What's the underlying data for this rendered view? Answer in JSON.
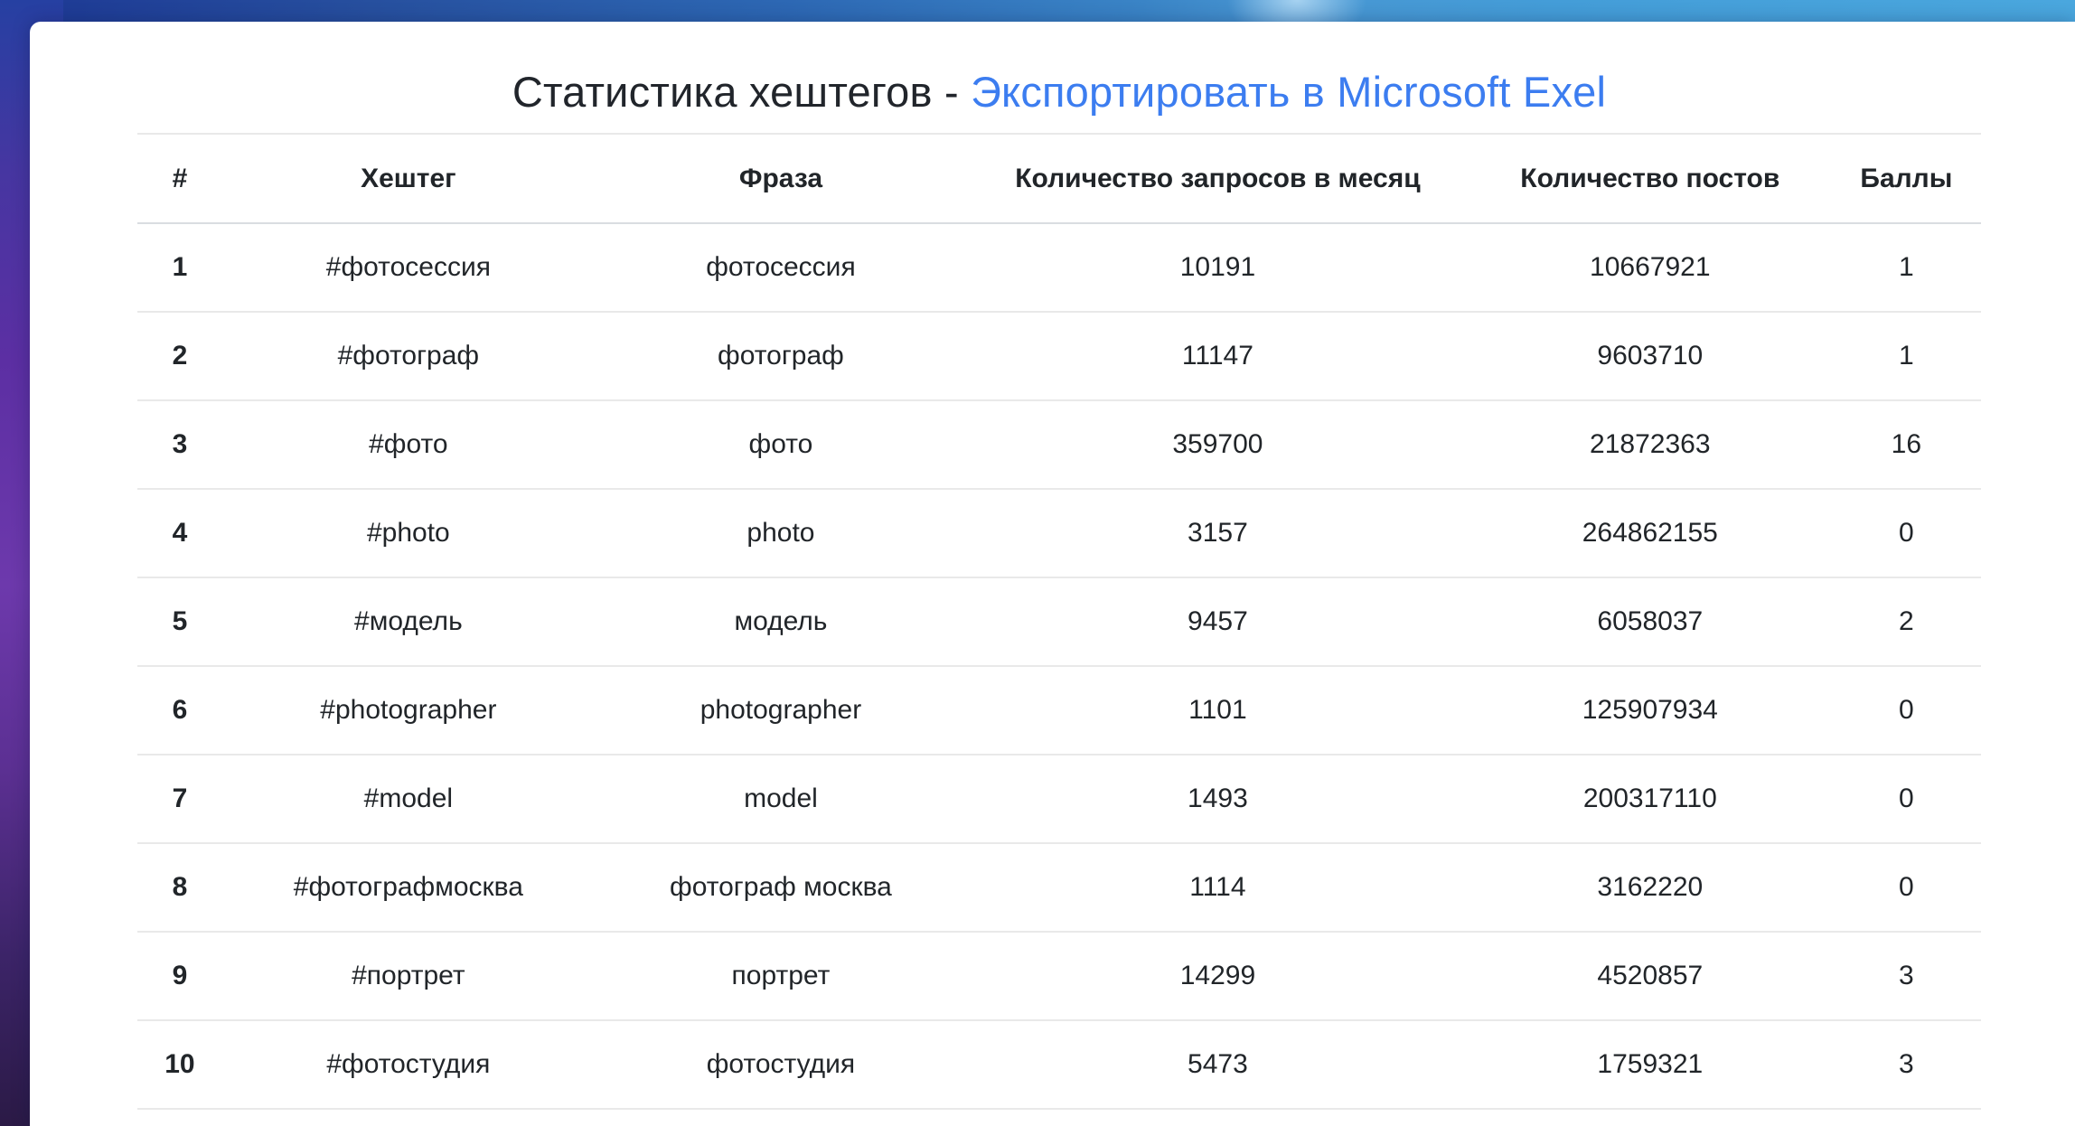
{
  "header": {
    "title_text": "Статистика хештегов - ",
    "export_link_label": "Экспортировать в Microsoft Exel"
  },
  "table": {
    "columns": [
      {
        "key": "index",
        "label": "#"
      },
      {
        "key": "hashtag",
        "label": "Хештег"
      },
      {
        "key": "phrase",
        "label": "Фраза"
      },
      {
        "key": "requests_per_month",
        "label": "Количество запросов в месяц"
      },
      {
        "key": "posts_count",
        "label": "Количество постов"
      },
      {
        "key": "score",
        "label": "Баллы"
      }
    ],
    "rows": [
      [
        "1",
        "#фотосессия",
        "фотосессия",
        "10191",
        "10667921",
        "1"
      ],
      [
        "2",
        "#фотограф",
        "фотограф",
        "11147",
        "9603710",
        "1"
      ],
      [
        "3",
        "#фото",
        "фото",
        "359700",
        "21872363",
        "16"
      ],
      [
        "4",
        "#photo",
        "photo",
        "3157",
        "264862155",
        "0"
      ],
      [
        "5",
        "#модель",
        "модель",
        "9457",
        "6058037",
        "2"
      ],
      [
        "6",
        "#photographer",
        "photographer",
        "1101",
        "125907934",
        "0"
      ],
      [
        "7",
        "#model",
        "model",
        "1493",
        "200317110",
        "0"
      ],
      [
        "8",
        "#фотографмосква",
        "фотограф москва",
        "1114",
        "3162220",
        "0"
      ],
      [
        "9",
        "#портрет",
        "портрет",
        "14299",
        "4520857",
        "3"
      ],
      [
        "10",
        "#фотостудия",
        "фотостудия",
        "5473",
        "1759321",
        "3"
      ]
    ]
  },
  "colors": {
    "link_blue": "#3c7df0",
    "text_dark": "#21252b",
    "divider_gray": "#e9e9e9",
    "bg_top_left_blue": "#1d3894",
    "bg_top_right_blue": "#4aa7de",
    "bg_left_purple": "#6d39ac",
    "bg_left_bottom_purple": "#2b1a46",
    "card_white": "#ffffff"
  }
}
